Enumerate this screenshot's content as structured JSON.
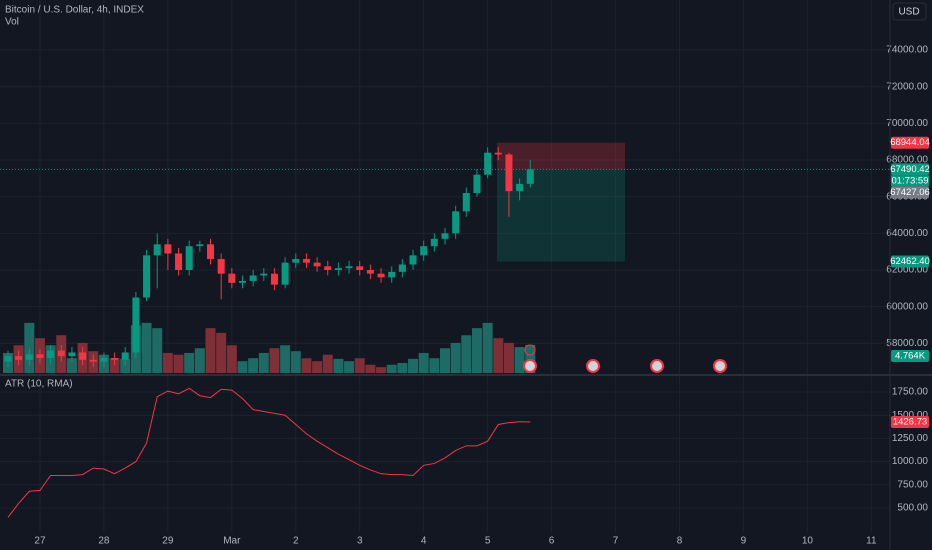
{
  "header": {
    "symbol": "Bitcoin / U.S. Dollar, 4h, INDEX",
    "currency_button": "USD"
  },
  "chart_data": [
    {
      "type": "candlestick",
      "x": [
        -12,
        -8,
        -4,
        0,
        4,
        8,
        12,
        16,
        20,
        24,
        28,
        32,
        36,
        40,
        44,
        48,
        52,
        56,
        60,
        64,
        68,
        72,
        76,
        80,
        84,
        88,
        92,
        96,
        100,
        104,
        108,
        112,
        116,
        120,
        124,
        128,
        132,
        136,
        140,
        144,
        148,
        152,
        156,
        160,
        164,
        168,
        172,
        176,
        180,
        184
      ],
      "open": [
        57000,
        57300,
        57100,
        57400,
        57200,
        57600,
        57300,
        57500,
        57100,
        57000,
        57200,
        57100,
        57500,
        60500,
        62800,
        63400,
        62900,
        62000,
        63300,
        63400,
        62600,
        61800,
        61300,
        61400,
        61700,
        61800,
        61200,
        62400,
        62600,
        62400,
        62200,
        62000,
        62100,
        62200,
        62000,
        61800,
        61600,
        61900,
        62300,
        62800,
        63300,
        63700,
        64000,
        65200,
        66200,
        67200,
        68400,
        68300,
        66300,
        66700
      ],
      "high": [
        57600,
        57600,
        57700,
        57700,
        57900,
        57900,
        57800,
        57800,
        57400,
        57500,
        57500,
        57800,
        60800,
        63100,
        64000,
        63700,
        63200,
        63600,
        63600,
        63700,
        62900,
        62100,
        61700,
        62000,
        62100,
        62100,
        62700,
        62900,
        62900,
        62700,
        62500,
        62400,
        62500,
        62500,
        62300,
        62100,
        62200,
        62600,
        63100,
        63600,
        64000,
        64300,
        65500,
        66500,
        67500,
        68700,
        68700,
        68400,
        67000,
        68000
      ],
      "low": [
        56700,
        56800,
        56800,
        56900,
        56900,
        57000,
        57000,
        56800,
        56700,
        56700,
        56800,
        56800,
        57200,
        60300,
        61000,
        62000,
        61700,
        61700,
        63000,
        62300,
        60400,
        61000,
        61000,
        61100,
        61400,
        60900,
        61000,
        62100,
        62100,
        61900,
        61700,
        61700,
        61800,
        61700,
        61500,
        61300,
        61300,
        61600,
        62000,
        62500,
        63000,
        63400,
        63700,
        64900,
        66000,
        67000,
        68000,
        64900,
        65800,
        66500
      ],
      "close": [
        57300,
        57100,
        57400,
        57200,
        57600,
        57300,
        57500,
        57100,
        57000,
        57200,
        57100,
        57500,
        60500,
        62800,
        63400,
        62900,
        62000,
        63300,
        63400,
        62600,
        61800,
        61300,
        61400,
        61700,
        61800,
        61200,
        62400,
        62600,
        62400,
        62200,
        62000,
        62100,
        62200,
        62000,
        61800,
        61600,
        61900,
        62300,
        62800,
        63300,
        63700,
        64000,
        65200,
        66200,
        67200,
        68400,
        68300,
        66300,
        66700,
        67490.42
      ],
      "up_color": "#089981",
      "down_color": "#f23645",
      "xlim": [
        -15,
        319
      ],
      "xticks": [
        {
          "value": 0,
          "label": "27"
        },
        {
          "value": 24,
          "label": "28"
        },
        {
          "value": 48,
          "label": "29"
        },
        {
          "value": 72,
          "label": "Mar"
        },
        {
          "value": 96,
          "label": "2"
        },
        {
          "value": 120,
          "label": "3"
        },
        {
          "value": 144,
          "label": "4"
        },
        {
          "value": 168,
          "label": "5"
        },
        {
          "value": 192,
          "label": "6"
        },
        {
          "value": 216,
          "label": "7"
        },
        {
          "value": 240,
          "label": "8"
        },
        {
          "value": 264,
          "label": "9"
        },
        {
          "value": 288,
          "label": "10"
        },
        {
          "value": 312,
          "label": "11"
        }
      ],
      "ylim": [
        56380,
        76730
      ],
      "yticks": [
        {
          "value": 58000,
          "label": "58000.00"
        },
        {
          "value": 60000,
          "label": "60000.00"
        },
        {
          "value": 62000,
          "label": "62000.00"
        },
        {
          "value": 64000,
          "label": "64000.00"
        },
        {
          "value": 66000,
          "label": "66000.00"
        },
        {
          "value": 68000,
          "label": "68000.00"
        },
        {
          "value": 70000,
          "label": "70000.00"
        },
        {
          "value": 72000,
          "label": "72000.00"
        },
        {
          "value": 74000,
          "label": "74000.00"
        }
      ],
      "grid": true,
      "stop_tag": {
        "value": 68944.04,
        "label": "68944.04",
        "color": "#f23645"
      },
      "price_tag": {
        "value": 67490.42,
        "label": "67490.42",
        "color": "#089981"
      },
      "countdown": "01:73:59",
      "cursor_tag": {
        "value": 67427.06,
        "label": "67427.06",
        "color": "#787b86"
      },
      "target_tag": {
        "value": 62462.4,
        "label": "62462.40",
        "color": "#089981"
      }
    },
    {
      "type": "bar",
      "title": "Vol",
      "values": [
        3.4,
        4.7,
        8.5,
        5.9,
        4.7,
        6.4,
        2.5,
        5.1,
        3.7,
        3.1,
        2.5,
        2.4,
        8.1,
        8.5,
        7.6,
        3.4,
        3.1,
        3.4,
        4.2,
        7.6,
        6.8,
        4.7,
        2.0,
        2.5,
        3.4,
        4.2,
        4.7,
        3.7,
        2.5,
        2.0,
        3.1,
        2.4,
        2.0,
        2.5,
        1.4,
        1.0,
        1.4,
        1.7,
        2.4,
        3.4,
        2.5,
        4.2,
        5.1,
        6.4,
        7.6,
        8.5,
        5.9,
        5.1,
        4.4,
        4.764
      ],
      "up_color": "#1d6b64",
      "down_color": "#7e2f37",
      "ylim": [
        0,
        20
      ],
      "value_tag": {
        "value": 4.764,
        "label": "4.764K",
        "color": "#089981"
      }
    },
    {
      "type": "line",
      "title": "ATR (10, RMA)",
      "values": [
        400,
        550,
        680,
        690,
        850,
        850,
        850,
        860,
        930,
        920,
        870,
        930,
        1000,
        1200,
        1700,
        1760,
        1730,
        1790,
        1710,
        1690,
        1780,
        1770,
        1680,
        1560,
        1540,
        1520,
        1500,
        1400,
        1300,
        1220,
        1150,
        1080,
        1020,
        960,
        910,
        870,
        860,
        860,
        850,
        960,
        980,
        1040,
        1120,
        1170,
        1170,
        1220,
        1400,
        1420,
        1430,
        1426.73
      ],
      "color": "#f23645",
      "ylim": [
        155,
        1901
      ],
      "yticks": [
        {
          "value": 500,
          "label": "500.00"
        },
        {
          "value": 750,
          "label": "750.00"
        },
        {
          "value": 1000,
          "label": "1000.00"
        },
        {
          "value": 1250,
          "label": "1250.00"
        },
        {
          "value": 1500,
          "label": "1500.00"
        },
        {
          "value": 1750,
          "label": "1750.00"
        }
      ],
      "last_tag": {
        "value": 1426.73,
        "label": "1426.73",
        "color": "#f23645"
      }
    }
  ]
}
